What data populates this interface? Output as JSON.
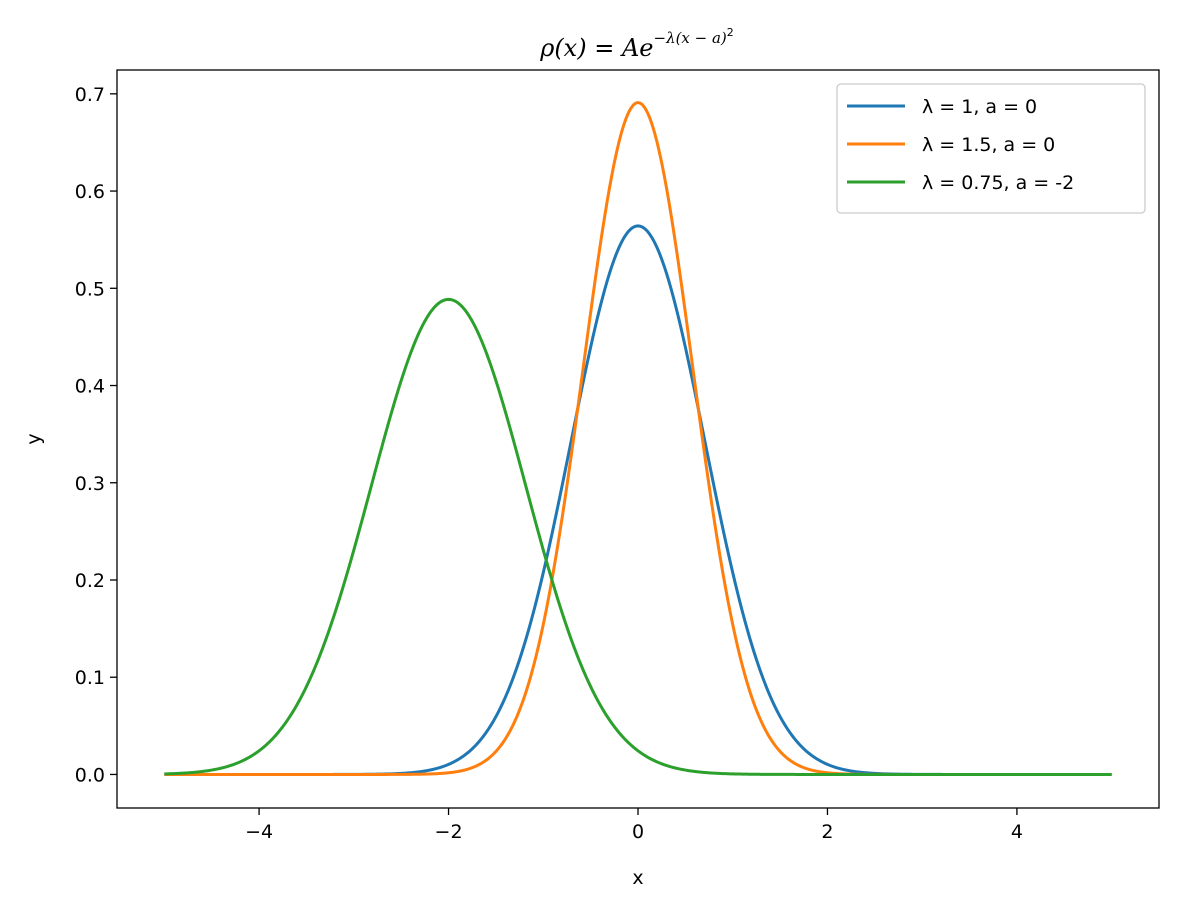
{
  "chart_data": {
    "type": "line",
    "title": {
      "lhs": "ρ(x)",
      "equals": " = ",
      "base": "Ae",
      "exponent": "−λ(x − a)",
      "exponent_power": "2"
    },
    "xlabel": "x",
    "ylabel": "y",
    "xlim": [
      -5.5,
      5.5
    ],
    "ylim": [
      -0.0345,
      0.7245
    ],
    "x_ticks": [
      -4,
      -2,
      0,
      2,
      4
    ],
    "x_tick_labels": [
      "−4",
      "−2",
      "0",
      "2",
      "4"
    ],
    "y_ticks": [
      0.0,
      0.1,
      0.2,
      0.3,
      0.4,
      0.5,
      0.6,
      0.7
    ],
    "y_tick_labels": [
      "0.0",
      "0.1",
      "0.2",
      "0.3",
      "0.4",
      "0.5",
      "0.6",
      "0.7"
    ],
    "grid": false,
    "legend_position": "top-right",
    "x_range": [
      -5,
      5
    ],
    "series": [
      {
        "name": "λ = 1, a = 0",
        "lambda": 1,
        "a": 0,
        "color": "#1f77b4"
      },
      {
        "name": "λ = 1.5, a = 0",
        "lambda": 1.5,
        "a": 0,
        "color": "#ff7f0e"
      },
      {
        "name": "λ = 0.75, a = -2",
        "lambda": 0.75,
        "a": -2,
        "color": "#2ca02c"
      }
    ]
  }
}
